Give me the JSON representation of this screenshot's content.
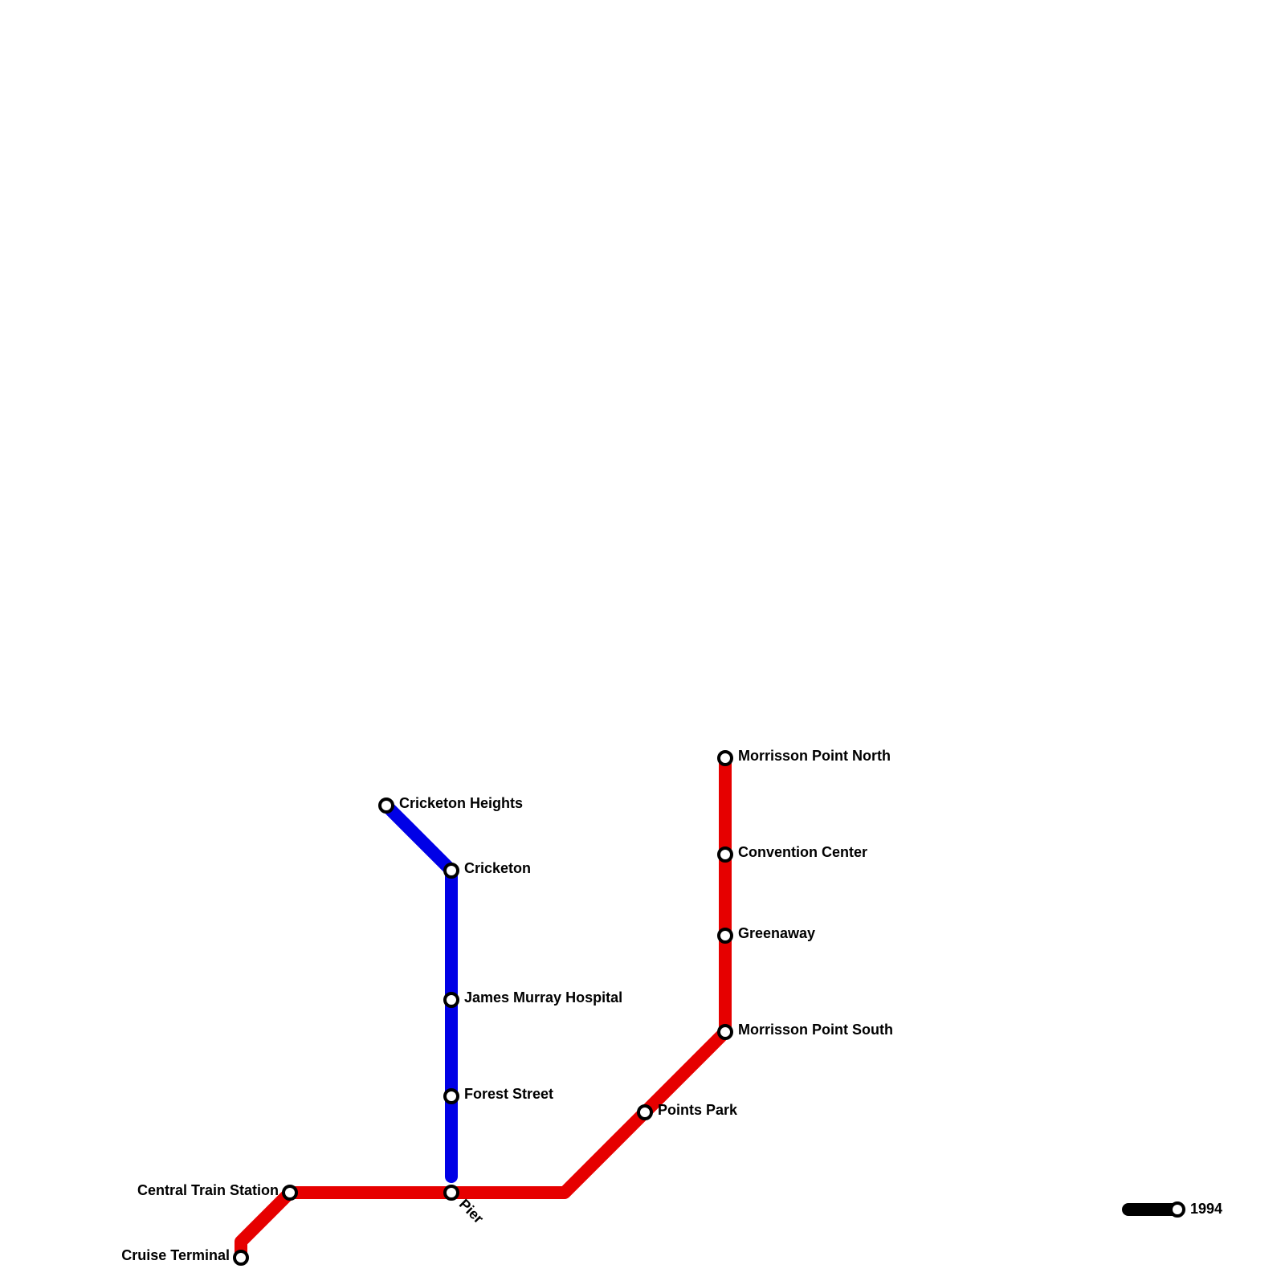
{
  "lines": [
    {
      "stations": [
        "Cruise Terminal",
        "Central Train Station",
        "Pier",
        "Points Park",
        "Morrisson Point South",
        "Greenaway",
        "Convention Center",
        "Morrisson Point North"
      ]
    },
    {
      "stations": [
        "Cricketon Heights",
        "Cricketon",
        "James Murray Hospital",
        "Forest Street"
      ]
    }
  ],
  "legend": {
    "label": "1994"
  }
}
